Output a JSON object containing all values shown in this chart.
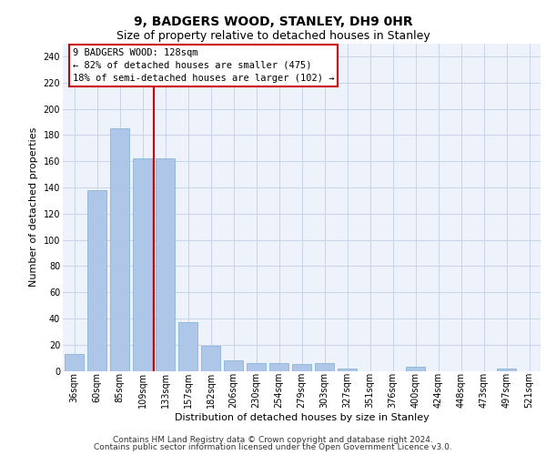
{
  "title_line1": "9, BADGERS WOOD, STANLEY, DH9 0HR",
  "title_line2": "Size of property relative to detached houses in Stanley",
  "xlabel": "Distribution of detached houses by size in Stanley",
  "ylabel": "Number of detached properties",
  "categories": [
    "36sqm",
    "60sqm",
    "85sqm",
    "109sqm",
    "133sqm",
    "157sqm",
    "182sqm",
    "206sqm",
    "230sqm",
    "254sqm",
    "279sqm",
    "303sqm",
    "327sqm",
    "351sqm",
    "376sqm",
    "400sqm",
    "424sqm",
    "448sqm",
    "473sqm",
    "497sqm",
    "521sqm"
  ],
  "values": [
    13,
    138,
    185,
    162,
    162,
    37,
    19,
    8,
    6,
    6,
    5,
    6,
    2,
    0,
    0,
    3,
    0,
    0,
    0,
    2,
    0
  ],
  "bar_color": "#aec6e8",
  "bar_edge_color": "#7aaed4",
  "vline_x": 3.5,
  "vline_color": "#cc0000",
  "annotation_text": "9 BADGERS WOOD: 128sqm\n← 82% of detached houses are smaller (475)\n18% of semi-detached houses are larger (102) →",
  "annotation_box_color": "#ffffff",
  "annotation_box_edge": "#cc0000",
  "ylim": [
    0,
    250
  ],
  "yticks": [
    0,
    20,
    40,
    60,
    80,
    100,
    120,
    140,
    160,
    180,
    200,
    220,
    240
  ],
  "grid_color": "#c8d4e8",
  "background_color": "#eef2fa",
  "footer_line1": "Contains HM Land Registry data © Crown copyright and database right 2024.",
  "footer_line2": "Contains public sector information licensed under the Open Government Licence v3.0.",
  "title_fontsize": 10,
  "subtitle_fontsize": 9,
  "axis_label_fontsize": 8,
  "tick_fontsize": 7,
  "annotation_fontsize": 7.5,
  "footer_fontsize": 6.5
}
